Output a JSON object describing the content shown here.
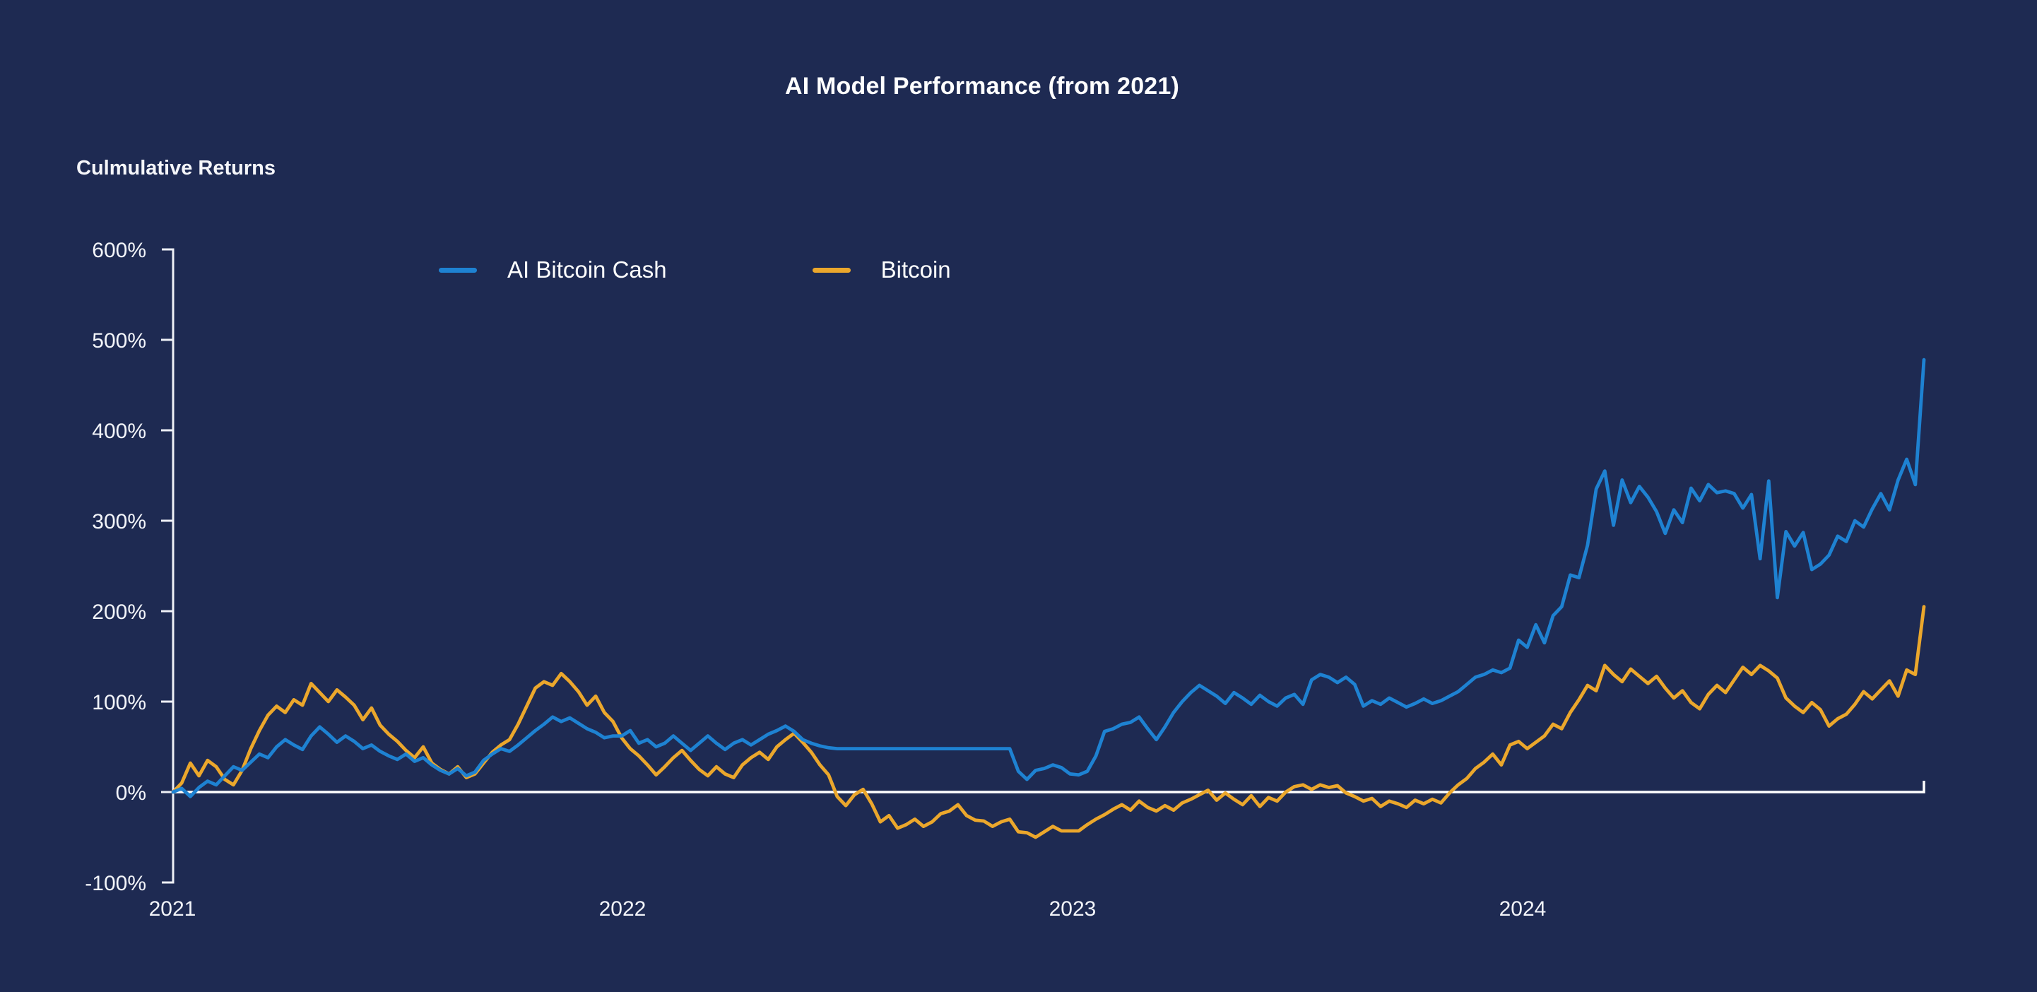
{
  "header": {
    "title": "AI Model Performance (from 2021)",
    "y_axis_title": "Culmulative Returns"
  },
  "legend": {
    "items": [
      {
        "label": "AI Bitcoin Cash",
        "color": "#1e82d2"
      },
      {
        "label": "Bitcoin",
        "color": "#eba72c"
      }
    ]
  },
  "colors": {
    "background": "#1e2a52",
    "axis_line": "#eef0f6",
    "zero_line": "#ffffff",
    "text": "#f2f4f9",
    "series_blue": "#1e82d2",
    "series_orange": "#eba72c"
  },
  "chart_data": {
    "type": "line",
    "title": "AI Model Performance (from 2021)",
    "ylabel": "Culmulative Returns",
    "xlabel": "",
    "ylim": [
      -100,
      600
    ],
    "y_ticks_pct": [
      600,
      500,
      400,
      300,
      200,
      100,
      0,
      -100
    ],
    "y_tick_labels": [
      "600%",
      "500%",
      "400%",
      "300%",
      "200%",
      "100%",
      "0%",
      "-100%"
    ],
    "x_tick_labels": [
      "2021",
      "2022",
      "2023",
      "2024"
    ],
    "x_unit": "weekly samples from Jan 2021 to Nov 2024",
    "grid": false,
    "zero_baseline": true,
    "legend_position": "top-inside",
    "series": [
      {
        "name": "AI Bitcoin Cash",
        "color": "#1e82d2",
        "values": [
          0,
          4,
          -5,
          5,
          12,
          8,
          18,
          28,
          24,
          33,
          42,
          38,
          50,
          58,
          52,
          47,
          62,
          72,
          64,
          55,
          62,
          56,
          48,
          52,
          45,
          40,
          36,
          42,
          34,
          38,
          30,
          24,
          20,
          26,
          18,
          22,
          35,
          42,
          48,
          45,
          52,
          60,
          68,
          75,
          83,
          78,
          82,
          76,
          70,
          66,
          60,
          62,
          62,
          68,
          54,
          58,
          50,
          54,
          62,
          54,
          46,
          54,
          62,
          54,
          47,
          54,
          58,
          52,
          58,
          64,
          68,
          73,
          67,
          58,
          54,
          51,
          49,
          48,
          48,
          48,
          48,
          48,
          48,
          48,
          48,
          48,
          48,
          48,
          48,
          48,
          48,
          48,
          48,
          48,
          48,
          48,
          48,
          48,
          23,
          14,
          24,
          26,
          30,
          27,
          20,
          19,
          23,
          40,
          67,
          70,
          75,
          77,
          83,
          70,
          58,
          72,
          88,
          100,
          110,
          118,
          112,
          106,
          98,
          110,
          104,
          97,
          107,
          100,
          95,
          104,
          108,
          97,
          124,
          130,
          127,
          121,
          127,
          119,
          95,
          101,
          97,
          104,
          99,
          94,
          98,
          103,
          98,
          101,
          106,
          111,
          119,
          127,
          130,
          135,
          132,
          137,
          168,
          160,
          185,
          165,
          195,
          205,
          240,
          237,
          273,
          335,
          355,
          295,
          345,
          320,
          338,
          326,
          310,
          286,
          312,
          298,
          336,
          322,
          340,
          331,
          333,
          330,
          314,
          329,
          258,
          344,
          215,
          288,
          272,
          287,
          246,
          252,
          262,
          283,
          277,
          300,
          293,
          313,
          330,
          312,
          345,
          368,
          340,
          478
        ]
      },
      {
        "name": "Bitcoin",
        "color": "#eba72c",
        "values": [
          0,
          10,
          32,
          18,
          35,
          28,
          14,
          8,
          24,
          48,
          68,
          85,
          95,
          88,
          102,
          96,
          120,
          110,
          100,
          113,
          105,
          96,
          80,
          93,
          74,
          64,
          56,
          46,
          38,
          50,
          32,
          25,
          20,
          28,
          16,
          20,
          32,
          44,
          52,
          58,
          75,
          95,
          115,
          122,
          118,
          131,
          122,
          111,
          96,
          106,
          88,
          78,
          60,
          48,
          40,
          30,
          19,
          28,
          38,
          46,
          35,
          25,
          18,
          28,
          20,
          16,
          30,
          38,
          44,
          36,
          50,
          58,
          65,
          55,
          44,
          30,
          19,
          -5,
          -15,
          -3,
          3,
          -13,
          -33,
          -26,
          -40,
          -36,
          -30,
          -38,
          -33,
          -24,
          -21,
          -14,
          -26,
          -31,
          -32,
          -38,
          -33,
          -30,
          -44,
          -45,
          -50,
          -44,
          -38,
          -43,
          -43,
          -43,
          -36,
          -30,
          -25,
          -19,
          -14,
          -20,
          -10,
          -17,
          -21,
          -15,
          -20,
          -12,
          -8,
          -3,
          2,
          -9,
          -1,
          -8,
          -14,
          -4,
          -16,
          -6,
          -10,
          0,
          6,
          8,
          3,
          8,
          5,
          7,
          -1,
          -5,
          -10,
          -7,
          -16,
          -10,
          -13,
          -17,
          -9,
          -13,
          -8,
          -12,
          -1,
          8,
          15,
          26,
          33,
          42,
          30,
          52,
          56,
          48,
          55,
          62,
          75,
          70,
          88,
          102,
          118,
          112,
          140,
          130,
          122,
          136,
          128,
          120,
          128,
          115,
          104,
          112,
          99,
          92,
          108,
          118,
          110,
          124,
          138,
          130,
          140,
          134,
          126,
          104,
          95,
          88,
          99,
          91,
          73,
          81,
          86,
          97,
          111,
          103,
          113,
          123,
          106,
          135,
          130,
          205
        ]
      }
    ]
  }
}
